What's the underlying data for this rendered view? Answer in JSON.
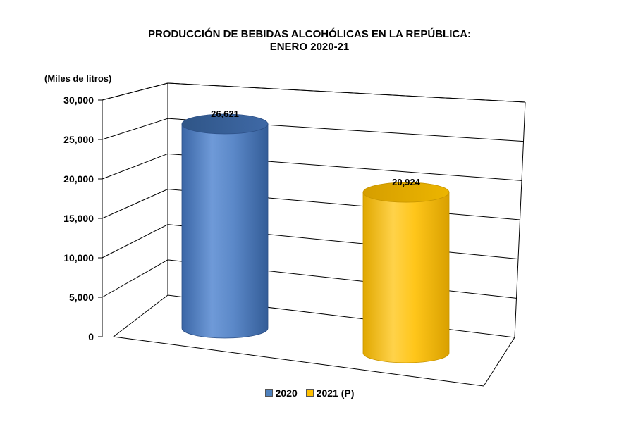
{
  "chart_data": {
    "type": "bar",
    "title": "PRODUCCIÓN DE BEBIDAS ALCOHÓLICAS EN LA REPÚBLICA:",
    "subtitle": "ENERO 2020-21",
    "ylabel": "(Miles de litros)",
    "xlabel": "",
    "ylim": [
      0,
      30000
    ],
    "yticks": [
      0,
      5000,
      10000,
      15000,
      20000,
      25000,
      30000
    ],
    "ytick_labels": [
      "0",
      "5,000",
      "10,000",
      "15,000",
      "20,000",
      "25,000",
      "30,000"
    ],
    "categories": [
      "2020",
      "2021 (P)"
    ],
    "series": [
      {
        "name": "2020",
        "values": [
          26621,
          null
        ],
        "value_label": "26,621",
        "color": "#4f81bd"
      },
      {
        "name": "2021 (P)",
        "values": [
          null,
          20924
        ],
        "value_label": "20,924",
        "color": "#ffc000"
      }
    ],
    "grid": true,
    "legend_position": "bottom",
    "style": "3d-cylinder"
  }
}
